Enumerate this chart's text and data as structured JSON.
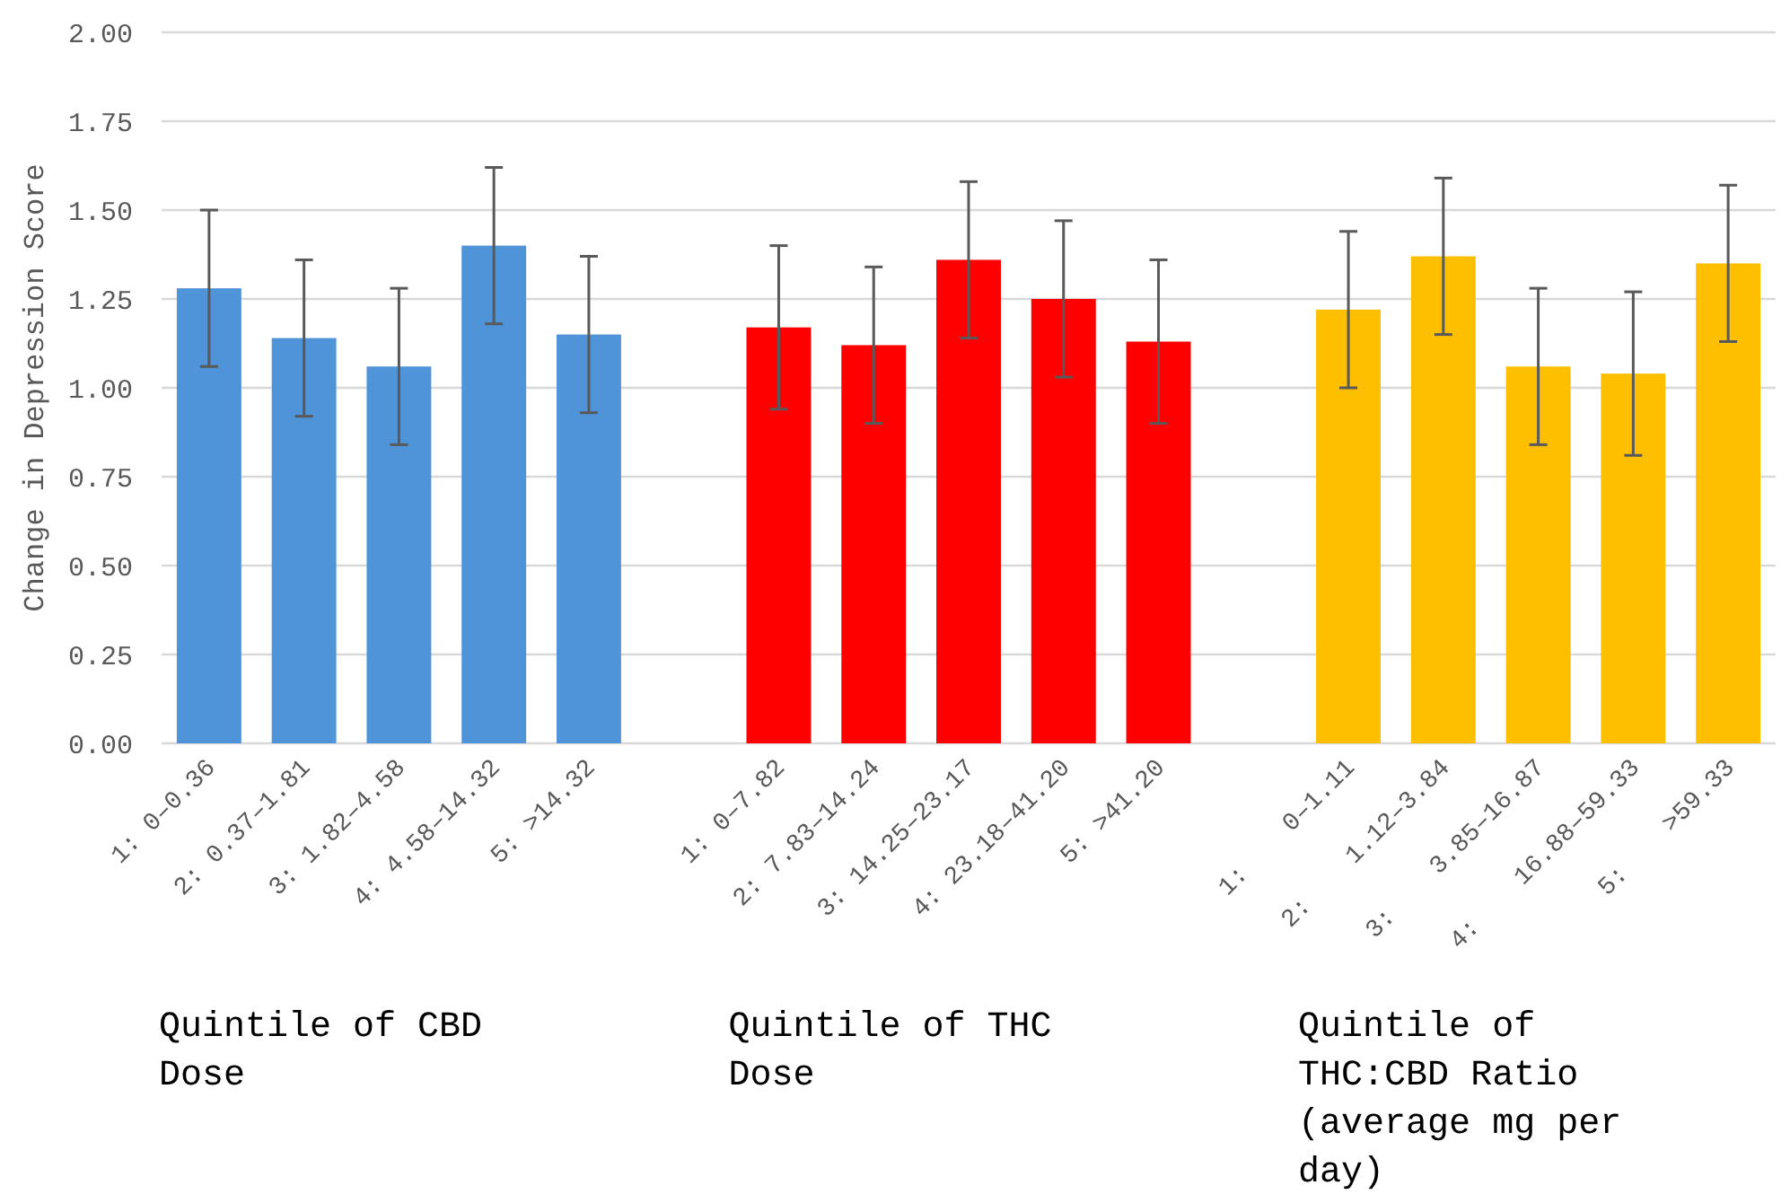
{
  "chart_data": {
    "type": "bar",
    "ylabel": "Change in Depression Score",
    "categories": [
      "1: 0–0.36",
      "2: 0.37–1.81",
      "3: 1.82–4.58",
      "4: 4.58–14.32",
      "5: >14.32",
      null,
      "1: 0–7.82",
      "2: 7.83–14.24",
      "3: 14.25–23.17",
      "4: 23.18–41.20",
      "5: >41.20",
      null,
      "1:    0–1.11",
      "2:    1.12–3.84",
      "3:    3.85–16.87",
      "4:    16.88–59.33",
      "5:    >59.33"
    ],
    "values": [
      1.28,
      1.14,
      1.06,
      1.4,
      1.15,
      null,
      1.17,
      1.12,
      1.36,
      1.25,
      1.13,
      null,
      1.22,
      1.37,
      1.06,
      1.04,
      1.35
    ],
    "errors": [
      0.22,
      0.22,
      0.22,
      0.22,
      0.22,
      null,
      0.23,
      0.22,
      0.22,
      0.22,
      0.23,
      null,
      0.22,
      0.22,
      0.22,
      0.23,
      0.22
    ],
    "colors": [
      "#4f94d9",
      "#4f94d9",
      "#4f94d9",
      "#4f94d9",
      "#4f94d9",
      null,
      "#ff0000",
      "#ff0000",
      "#ff0000",
      "#ff0000",
      "#ff0000",
      null,
      "#fdbf00",
      "#fdbf00",
      "#fdbf00",
      "#fdbf00",
      "#fdbf00"
    ],
    "ylim": [
      0,
      2
    ],
    "yticks": [
      {
        "value": 0,
        "label": "0.00"
      },
      {
        "value": 0.25,
        "label": "0.25"
      },
      {
        "value": 0.5,
        "label": "0.50"
      },
      {
        "value": 0.75,
        "label": "0.75"
      },
      {
        "value": 1,
        "label": "1.00"
      },
      {
        "value": 1.25,
        "label": "1.25"
      },
      {
        "value": 1.5,
        "label": "1.50"
      },
      {
        "value": 1.75,
        "label": "1.75"
      },
      {
        "value": 2,
        "label": "2.00"
      }
    ],
    "grid": "y",
    "annotations": [
      "Quintile of CBD Dose",
      "Quintile of THC Dose",
      "Quintile of THC:CBD Ratio (average mg per day)"
    ]
  }
}
